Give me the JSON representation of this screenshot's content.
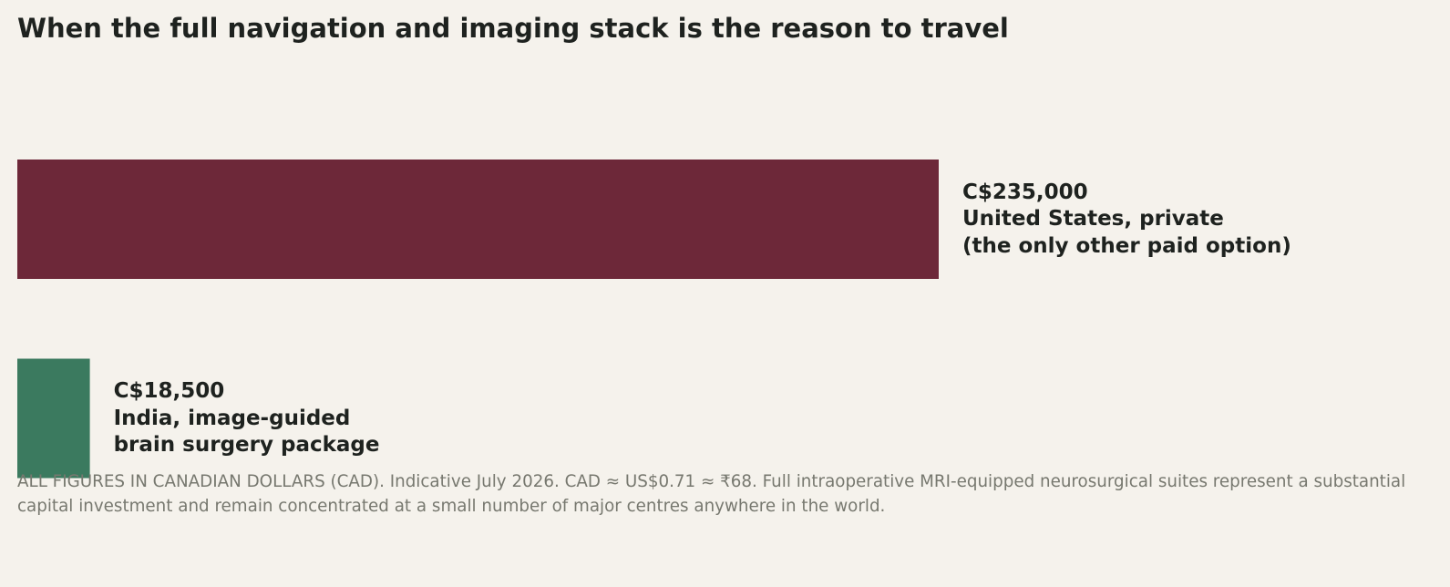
{
  "chart_data": {
    "type": "bar",
    "orientation": "horizontal",
    "title": "When the full navigation and imaging stack is the reason to travel",
    "categories": [
      "United States, private\n(the only other paid option)",
      "India, image-guided\nbrain surgery package"
    ],
    "values": [
      235000,
      18500
    ],
    "value_labels": [
      "C$235,000",
      "C$18,500"
    ],
    "colors": [
      "#6d2839",
      "#3b7a5f"
    ],
    "xlim": [
      0,
      235000
    ],
    "footnote": "ALL FIGURES IN CANADIAN DOLLARS (CAD). Indicative July 2026. CAD ≈ US$0.71 ≈ ₹68. Full intraoperative MRI-equipped neurosurgical suites represent a substantial capital investment and remain concentrated at a small number of major centres anywhere in the world."
  }
}
